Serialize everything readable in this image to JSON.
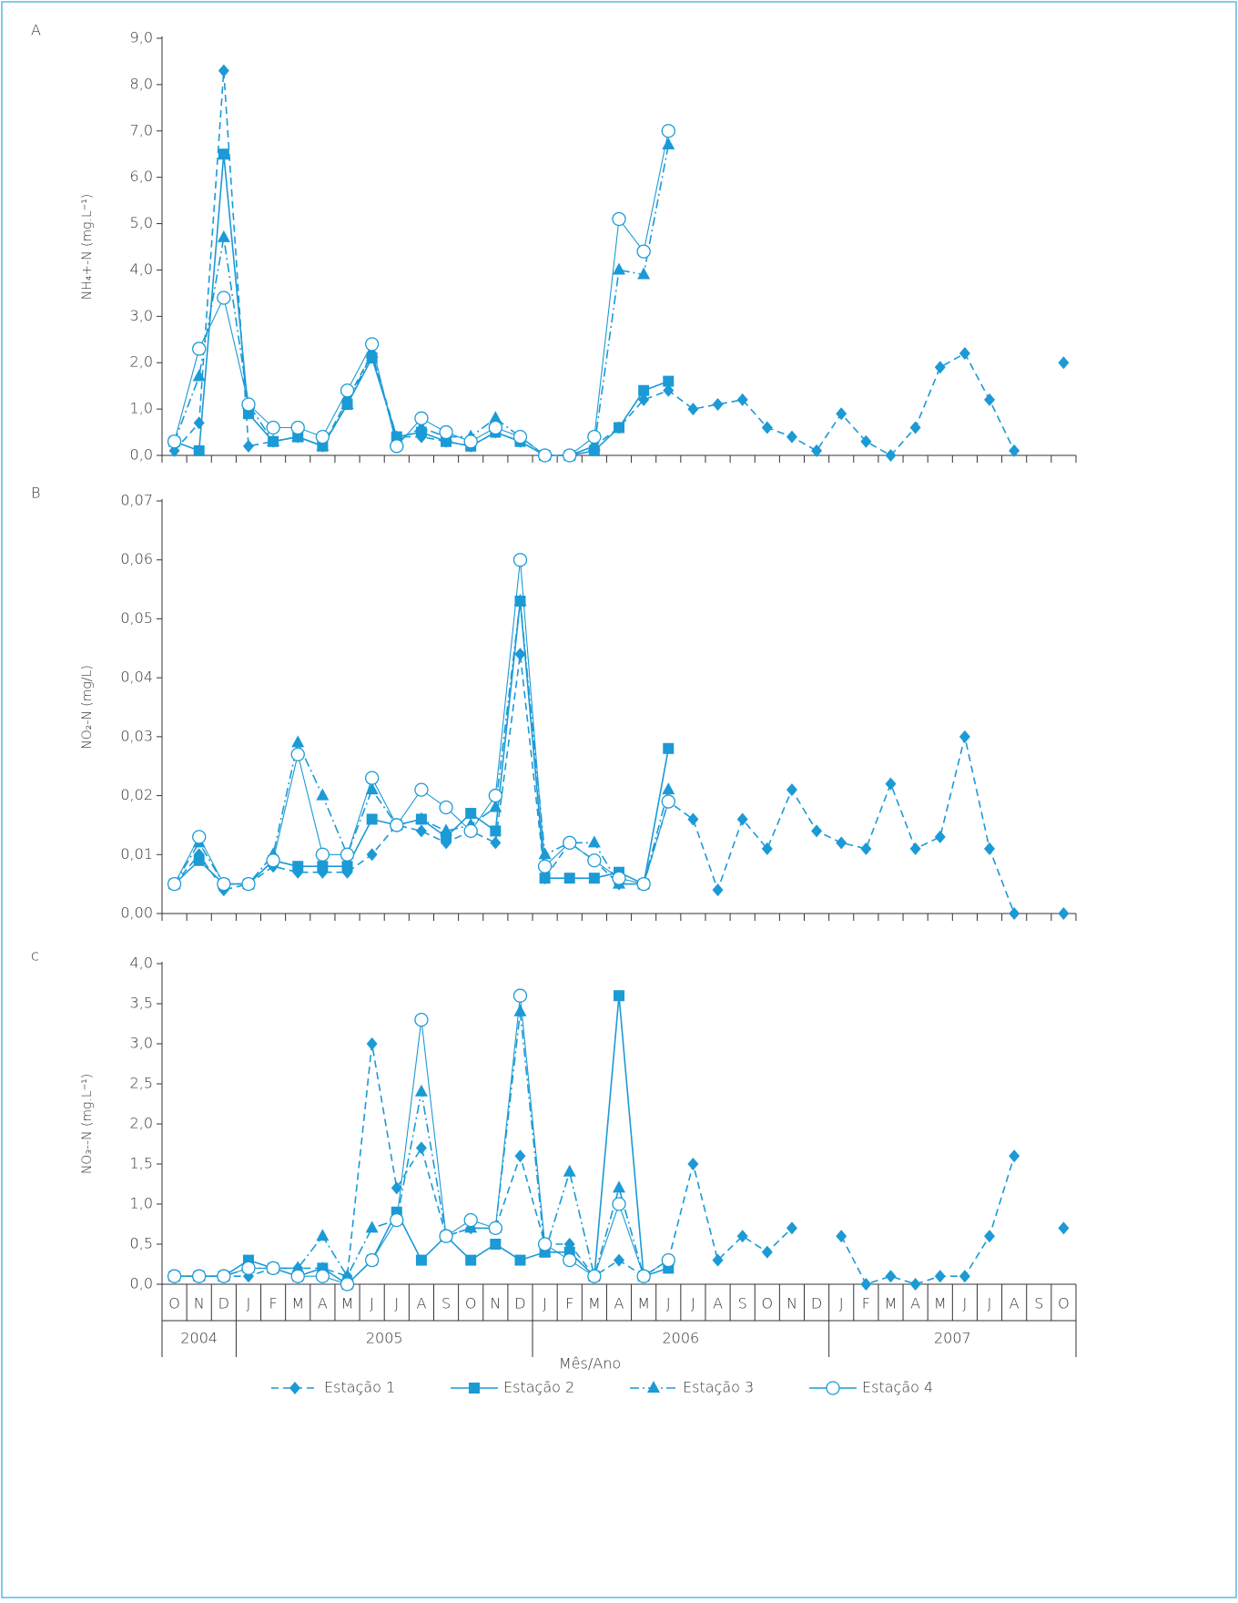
{
  "chart_data": [
    {
      "type": "line",
      "panel_label": "A",
      "y_label": "NH₄+-N (mg.L⁻¹)",
      "ylim": [
        0,
        9
      ],
      "yticks": [
        {
          "value": 0,
          "label": "0,0"
        },
        {
          "value": 1,
          "label": "1,0"
        },
        {
          "value": 2,
          "label": "2,0"
        },
        {
          "value": 3,
          "label": "3,0"
        },
        {
          "value": 4,
          "label": "4,0"
        },
        {
          "value": 5,
          "label": "5,0"
        },
        {
          "value": 6,
          "label": "6,0"
        },
        {
          "value": 7,
          "label": "7,0"
        },
        {
          "value": 8,
          "label": "8,0"
        },
        {
          "value": 9,
          "label": "9,0"
        }
      ],
      "series": [
        {
          "color": "#1b9ad6",
          "marker": "diamond",
          "dash": "8,5",
          "values": [
            0.1,
            0.7,
            8.3,
            0.2,
            0.3,
            0.4,
            0.2,
            1.2,
            2.2,
            0.4,
            0.4,
            0.3,
            0.2,
            0.5,
            0.3,
            0.0,
            0.0,
            0.2,
            0.6,
            1.2,
            1.4,
            1.0,
            1.1,
            1.2,
            0.6,
            0.4,
            0.1,
            0.9,
            0.3,
            0.0,
            0.6,
            1.9,
            2.2,
            1.2,
            0.1,
            null,
            2.0
          ]
        },
        {
          "color": "#1b9ad6",
          "marker": "square",
          "dash": "none",
          "values": [
            0.3,
            0.1,
            6.5,
            0.9,
            0.3,
            0.4,
            0.2,
            1.1,
            2.1,
            0.4,
            0.5,
            0.3,
            0.2,
            0.5,
            0.3,
            0.0,
            0.0,
            0.1,
            0.6,
            1.4,
            1.6,
            null,
            null,
            null,
            null,
            null,
            null,
            null,
            null,
            null,
            null,
            null,
            null,
            null,
            null,
            null,
            null
          ]
        },
        {
          "color": "#1b9ad6",
          "marker": "triangle",
          "dash": "10,4,2,4",
          "values": [
            0.3,
            1.7,
            4.7,
            1.1,
            0.3,
            0.4,
            0.2,
            1.1,
            2.2,
            0.3,
            0.6,
            0.4,
            0.4,
            0.8,
            0.4,
            0.0,
            0.0,
            0.2,
            4.0,
            3.9,
            6.7,
            null,
            null,
            null,
            null,
            null,
            null,
            null,
            null,
            null,
            null,
            null,
            null,
            null,
            null,
            null,
            null
          ]
        },
        {
          "color": "#1b9ad6",
          "marker": "circle",
          "dash": "none",
          "values": [
            0.3,
            2.3,
            3.4,
            1.1,
            0.6,
            0.6,
            0.4,
            1.4,
            2.4,
            0.2,
            0.8,
            0.5,
            0.3,
            0.6,
            0.4,
            0.0,
            0.0,
            0.4,
            5.1,
            4.4,
            7.0,
            null,
            null,
            null,
            null,
            null,
            null,
            null,
            null,
            null,
            null,
            null,
            null,
            null,
            null,
            null,
            null
          ]
        }
      ]
    },
    {
      "type": "line",
      "panel_label": "B",
      "y_label": "NO₂-N (mg/L)",
      "ylim": [
        0,
        0.07
      ],
      "yticks": [
        {
          "value": 0,
          "label": "0,00"
        },
        {
          "value": 0.01,
          "label": "0,01"
        },
        {
          "value": 0.02,
          "label": "0,02"
        },
        {
          "value": 0.03,
          "label": "0,03"
        },
        {
          "value": 0.04,
          "label": "0,04"
        },
        {
          "value": 0.05,
          "label": "0,05"
        },
        {
          "value": 0.06,
          "label": "0,06"
        },
        {
          "value": 0.07,
          "label": "0,07"
        }
      ],
      "series": [
        {
          "color": "#1b9ad6",
          "marker": "diamond",
          "dash": "8,5",
          "values": [
            0.005,
            0.01,
            0.004,
            0.005,
            0.008,
            0.007,
            0.007,
            0.007,
            0.01,
            0.015,
            0.014,
            0.012,
            0.014,
            0.012,
            0.044,
            0.006,
            0.012,
            0.009,
            0.005,
            0.005,
            0.019,
            0.016,
            0.004,
            0.016,
            0.011,
            0.021,
            0.014,
            0.012,
            0.011,
            0.022,
            0.011,
            0.013,
            0.03,
            0.011,
            0.0,
            null,
            0.0
          ]
        },
        {
          "color": "#1b9ad6",
          "marker": "square",
          "dash": "none",
          "values": [
            0.005,
            0.009,
            0.005,
            0.005,
            0.009,
            0.008,
            0.008,
            0.008,
            0.016,
            0.015,
            0.016,
            0.013,
            0.017,
            0.014,
            0.053,
            0.006,
            0.006,
            0.006,
            0.007,
            0.005,
            0.028,
            null,
            null,
            null,
            null,
            null,
            null,
            null,
            null,
            null,
            null,
            null,
            null,
            null,
            null,
            null,
            null
          ]
        },
        {
          "color": "#1b9ad6",
          "marker": "triangle",
          "dash": "10,4,2,4",
          "values": [
            0.005,
            0.012,
            0.005,
            0.005,
            0.01,
            0.029,
            0.02,
            0.01,
            0.021,
            0.015,
            0.016,
            0.014,
            0.015,
            0.018,
            0.053,
            0.01,
            0.012,
            0.012,
            0.005,
            0.005,
            0.021,
            null,
            null,
            null,
            null,
            null,
            null,
            null,
            null,
            null,
            null,
            null,
            null,
            null,
            null,
            null,
            null
          ]
        },
        {
          "color": "#1b9ad6",
          "marker": "circle",
          "dash": "none",
          "values": [
            0.005,
            0.013,
            0.005,
            0.005,
            0.009,
            0.027,
            0.01,
            0.01,
            0.023,
            0.015,
            0.021,
            0.018,
            0.014,
            0.02,
            0.06,
            0.008,
            0.012,
            0.009,
            0.006,
            0.005,
            0.019,
            null,
            null,
            null,
            null,
            null,
            null,
            null,
            null,
            null,
            null,
            null,
            null,
            null,
            null,
            null,
            null
          ]
        }
      ]
    },
    {
      "type": "line",
      "panel_label": "c",
      "y_label": "NO₃--N (mg.L⁻¹)",
      "x_label": "Mês/Ano",
      "categories": [
        "O",
        "N",
        "D",
        "J",
        "F",
        "M",
        "A",
        "M",
        "J",
        "J",
        "A",
        "S",
        "O",
        "N",
        "D",
        "J",
        "F",
        "M",
        "A",
        "M",
        "J",
        "J",
        "A",
        "S",
        "O",
        "N",
        "D",
        "J",
        "F",
        "M",
        "A",
        "M",
        "J",
        "J",
        "A",
        "S",
        "O"
      ],
      "years": [
        "2004",
        "2005",
        "2006",
        "2007"
      ],
      "ylim": [
        0,
        4
      ],
      "yticks": [
        {
          "value": 0,
          "label": "0,0"
        },
        {
          "value": 0.5,
          "label": "0,5"
        },
        {
          "value": 1,
          "label": "1,0"
        },
        {
          "value": 1.5,
          "label": "1,5"
        },
        {
          "value": 2,
          "label": "2,0"
        },
        {
          "value": 2.5,
          "label": "2,5"
        },
        {
          "value": 3,
          "label": "3,0"
        },
        {
          "value": 3.5,
          "label": "3,5"
        },
        {
          "value": 4,
          "label": "4,0"
        }
      ],
      "series": [
        {
          "name": "Estação 1",
          "color": "#1b9ad6",
          "marker": "diamond",
          "dash": "8,5",
          "values": [
            0.1,
            0.1,
            0.1,
            0.1,
            0.2,
            0.2,
            0.2,
            0.1,
            3.0,
            1.2,
            1.7,
            0.6,
            0.7,
            0.7,
            1.6,
            0.5,
            0.5,
            0.1,
            0.3,
            0.1,
            0.3,
            1.5,
            0.3,
            0.6,
            0.4,
            0.7,
            null,
            0.6,
            0.0,
            0.1,
            0.0,
            0.1,
            0.1,
            0.6,
            1.6,
            null,
            0.7
          ]
        },
        {
          "name": "Estação 2",
          "color": "#1b9ad6",
          "marker": "square",
          "dash": "none",
          "values": [
            0.1,
            0.1,
            0.1,
            0.3,
            0.2,
            0.1,
            0.2,
            0.0,
            0.3,
            0.9,
            0.3,
            0.6,
            0.3,
            0.5,
            0.3,
            0.4,
            0.4,
            0.1,
            3.6,
            0.1,
            0.2,
            null,
            null,
            null,
            null,
            null,
            null,
            null,
            null,
            null,
            null,
            null,
            null,
            null,
            null,
            null,
            null
          ]
        },
        {
          "name": "Estação 3",
          "color": "#1b9ad6",
          "marker": "triangle",
          "dash": "10,4,2,4",
          "values": [
            0.1,
            0.1,
            0.1,
            0.2,
            0.2,
            0.2,
            0.6,
            0.1,
            0.7,
            0.8,
            2.4,
            0.6,
            0.7,
            0.7,
            3.4,
            0.4,
            1.4,
            0.1,
            1.2,
            0.1,
            0.3,
            null,
            null,
            null,
            null,
            null,
            null,
            null,
            null,
            null,
            null,
            null,
            null,
            null,
            null,
            null,
            null
          ]
        },
        {
          "name": "Estação 4",
          "color": "#1b9ad6",
          "marker": "circle",
          "dash": "none",
          "values": [
            0.1,
            0.1,
            0.1,
            0.2,
            0.2,
            0.1,
            0.1,
            0.0,
            0.3,
            0.8,
            3.3,
            0.6,
            0.8,
            0.7,
            3.6,
            0.5,
            0.3,
            0.1,
            1.0,
            0.1,
            0.3,
            null,
            null,
            null,
            null,
            null,
            null,
            null,
            null,
            null,
            null,
            null,
            null,
            null,
            null,
            null,
            null
          ]
        }
      ]
    }
  ]
}
